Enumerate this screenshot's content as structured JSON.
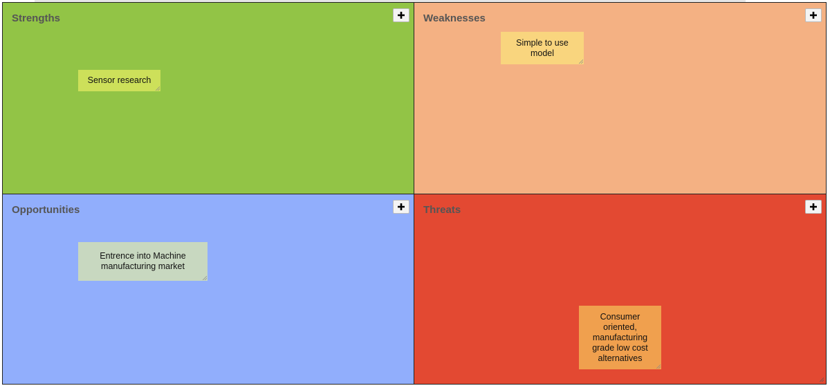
{
  "quadrants": [
    {
      "title": "Strengths",
      "notes": [
        "Sensor research"
      ]
    },
    {
      "title": "Weaknesses",
      "notes": [
        "Simple to use model"
      ]
    },
    {
      "title": "Opportunities",
      "notes": [
        "Entrence into Machine manufacturing market"
      ]
    },
    {
      "title": "Threats",
      "notes": [
        "Consumer oriented, manufacturing grade low cost alternatives"
      ]
    }
  ]
}
